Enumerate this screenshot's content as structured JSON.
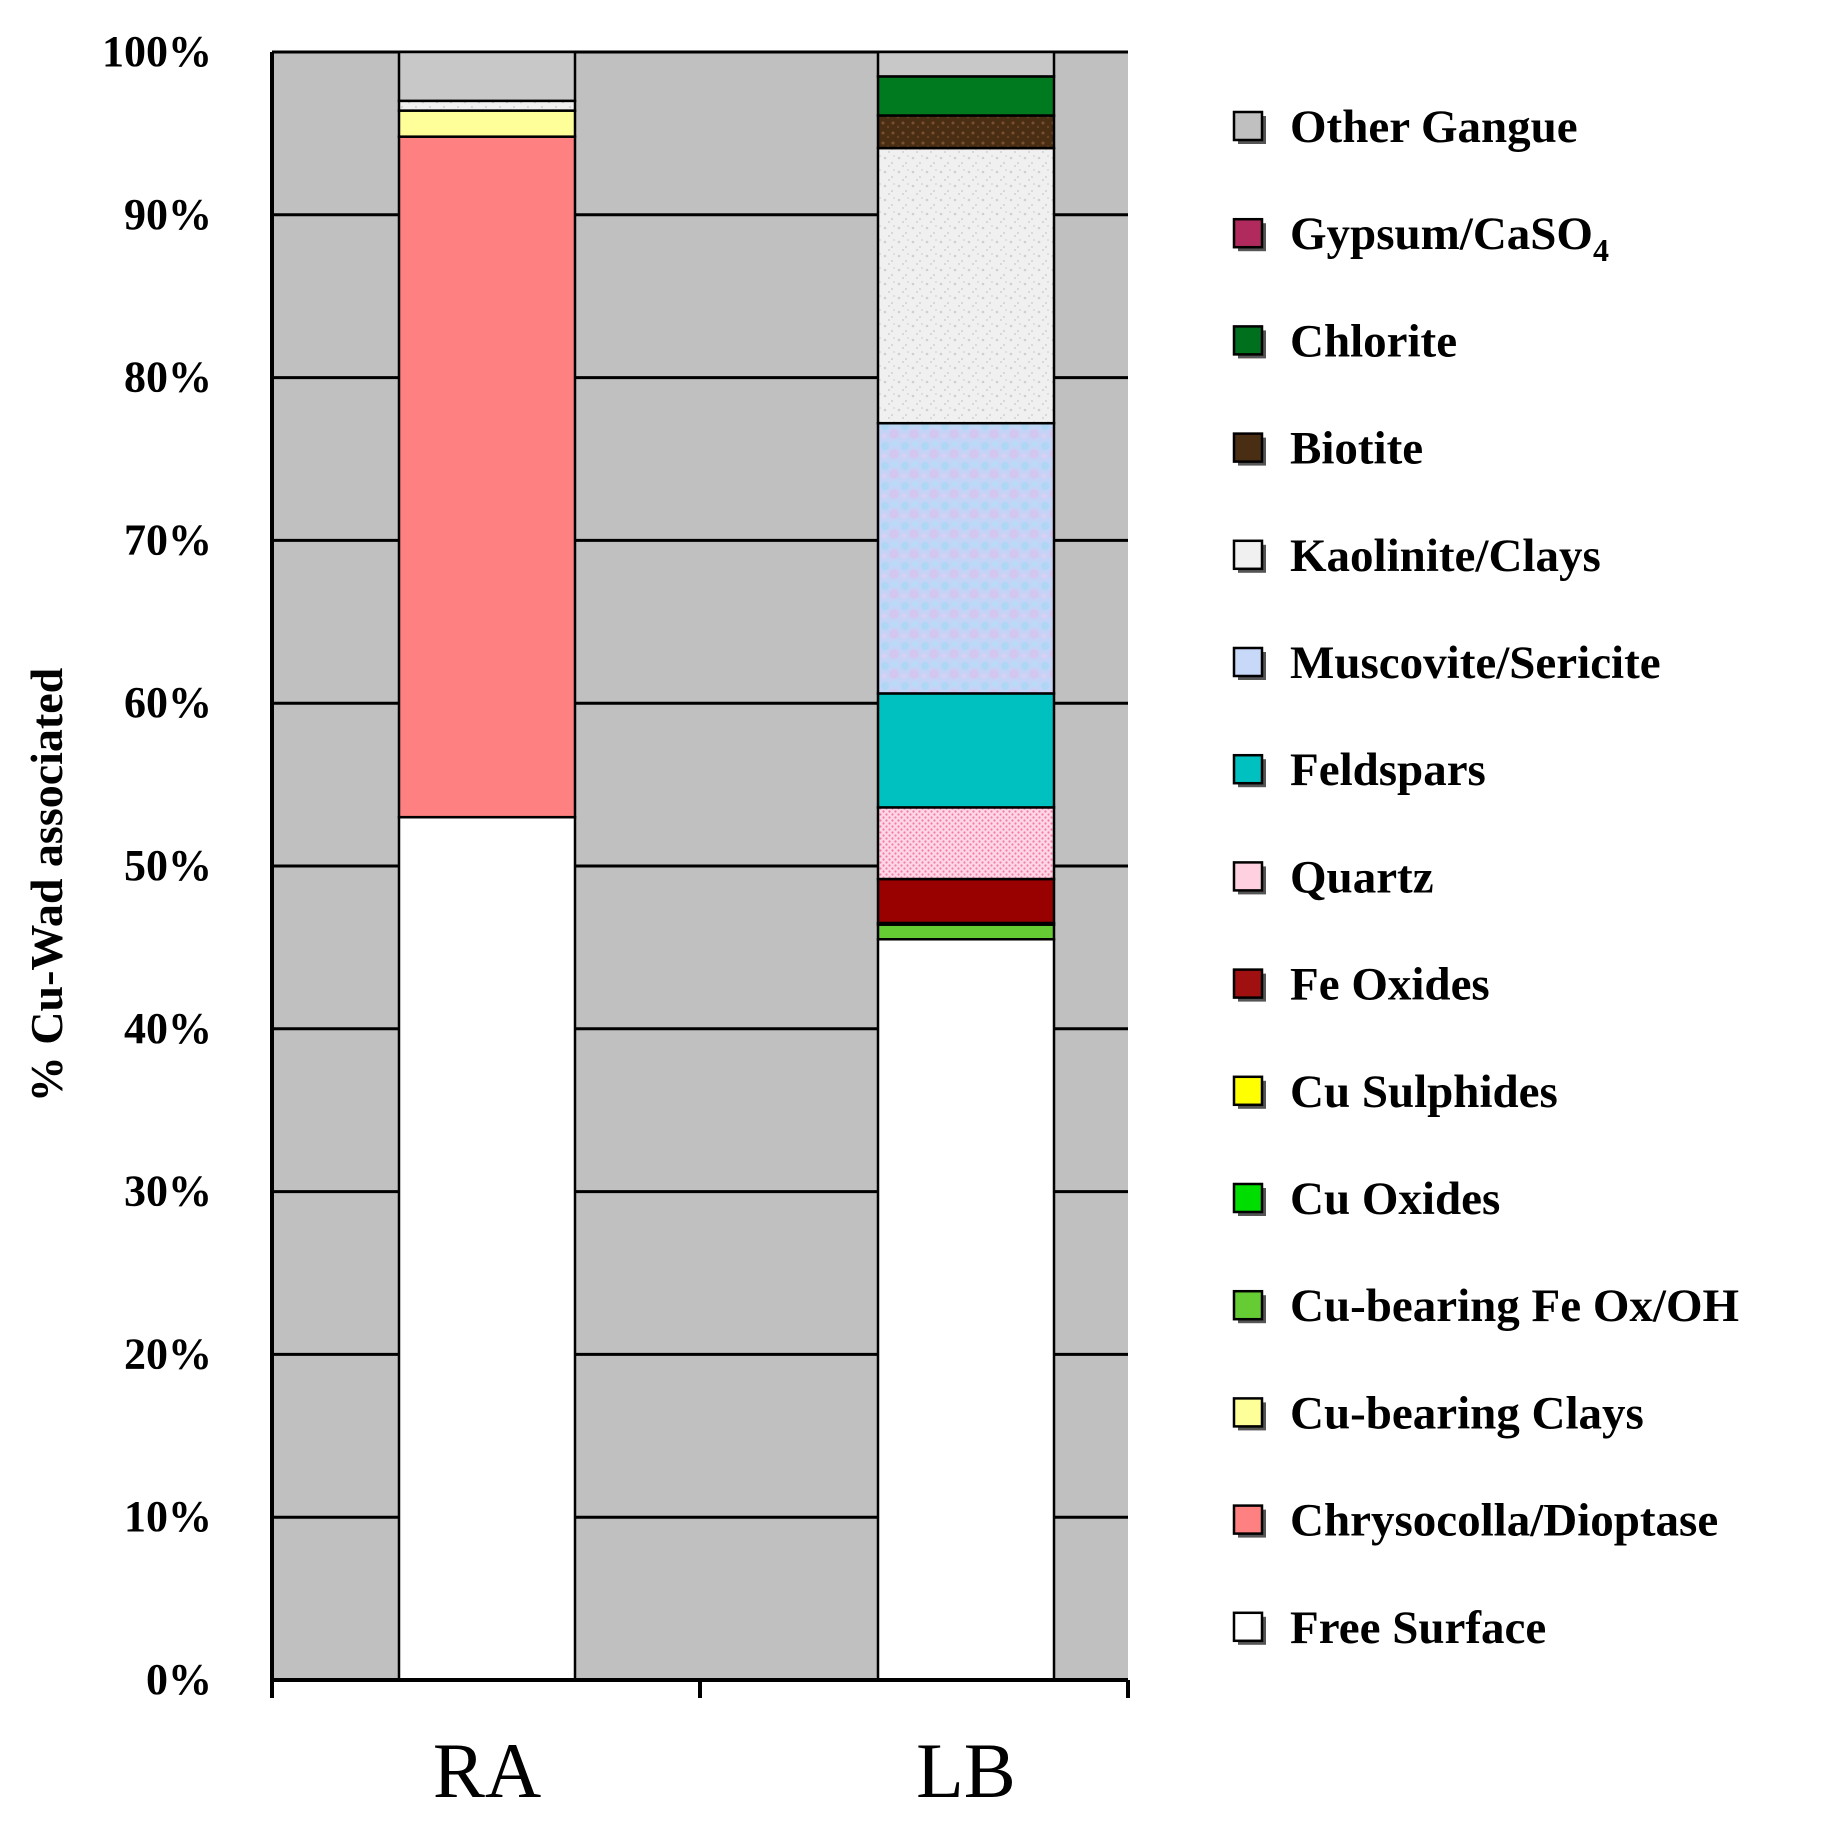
{
  "chart_data": {
    "type": "bar",
    "stacked": true,
    "ylabel": "% Cu-Wad associated",
    "xlabel": "",
    "ylim": [
      0,
      100
    ],
    "y_ticks": [
      "0%",
      "10%",
      "20%",
      "30%",
      "40%",
      "50%",
      "60%",
      "70%",
      "80%",
      "90%",
      "100%"
    ],
    "categories": [
      "RA",
      "LB"
    ],
    "series": [
      {
        "name": "Free Surface",
        "color": "#ffffff",
        "values": [
          53.0,
          45.5
        ]
      },
      {
        "name": "Chrysocolla/Dioptase",
        "color": "#ff8080",
        "values": [
          41.8,
          0
        ]
      },
      {
        "name": "Cu-bearing Clays",
        "color": "#ffff99",
        "values": [
          1.6,
          0
        ]
      },
      {
        "name": "Cu-bearing Fe Ox/OH",
        "color": "#66cc33",
        "values": [
          0,
          0.9
        ]
      },
      {
        "name": "Cu Oxides",
        "color": "#00cc00",
        "values": [
          0,
          0.1
        ]
      },
      {
        "name": "Cu Sulphides",
        "color": "#ffff00",
        "values": [
          0,
          0
        ]
      },
      {
        "name": "Fe Oxides",
        "color": "#990000",
        "values": [
          0,
          2.7
        ]
      },
      {
        "name": "Quartz",
        "color": "#ffccdd",
        "values": [
          0,
          4.4
        ]
      },
      {
        "name": "Feldspars",
        "color": "#00c0c0",
        "values": [
          0,
          7.0
        ]
      },
      {
        "name": "Muscovite/Sericite",
        "color": "#c8d8f8",
        "values": [
          0,
          16.6
        ]
      },
      {
        "name": "Kaolinite/Clays",
        "color": "#eeeeee",
        "values": [
          0.6,
          16.9
        ]
      },
      {
        "name": "Biotite",
        "color": "#4a2e14",
        "values": [
          0,
          2.0
        ]
      },
      {
        "name": "Chlorite",
        "color": "#007a1e",
        "values": [
          0,
          2.4
        ]
      },
      {
        "name": "Gypsum/CaSO4",
        "color": "#aa2255",
        "values": [
          0,
          0
        ]
      },
      {
        "name": "Other Gangue",
        "color": "#c8c8c8",
        "values": [
          3.0,
          1.5
        ]
      }
    ],
    "legend": {
      "position": "right",
      "entries": [
        {
          "label": "Other Gangue",
          "color": "#c0c0c0"
        },
        {
          "label": "Gypsum/CaSO",
          "sub": "4",
          "color": "#b02a5e"
        },
        {
          "label": "Chlorite",
          "color": "#006f1e"
        },
        {
          "label": "Biotite",
          "color": "#4a2e14"
        },
        {
          "label": "Kaolinite/Clays",
          "color": "#f0f0f0"
        },
        {
          "label": "Muscovite/Sericite",
          "color": "#c8d8f8"
        },
        {
          "label": "Feldspars",
          "color": "#00c0c0"
        },
        {
          "label": "Quartz",
          "color": "#ffd0e0"
        },
        {
          "label": "Fe Oxides",
          "color": "#a01010"
        },
        {
          "label": "Cu Sulphides",
          "color": "#ffff00"
        },
        {
          "label": "Cu Oxides",
          "color": "#00dd00"
        },
        {
          "label": "Cu-bearing Fe Ox/OH",
          "color": "#66cc33"
        },
        {
          "label": "Cu-bearing Clays",
          "color": "#ffff99"
        },
        {
          "label": "Chrysocolla/Dioptase",
          "color": "#ff8080"
        },
        {
          "label": "Free Surface",
          "color": "#ffffff"
        }
      ]
    },
    "grid": true,
    "plot_background": "#c0c0c0"
  }
}
